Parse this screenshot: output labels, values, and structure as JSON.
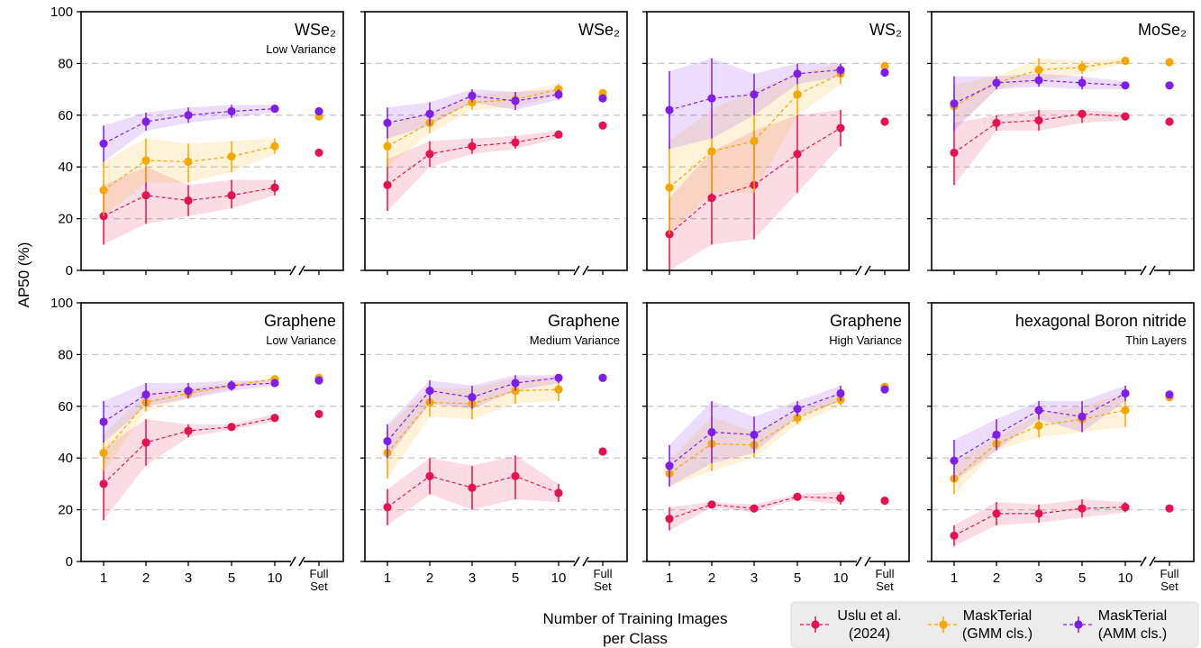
{
  "figure": {
    "ylabel": "AP50 (%)",
    "xlabel_line1": "Number of Training Images",
    "xlabel_line2": "per Class",
    "x_ticks": [
      "1",
      "2",
      "3",
      "5",
      "10"
    ],
    "full_set_line1": "Full",
    "full_set_line2": "Set",
    "y_ticks": [
      0,
      20,
      40,
      60,
      80,
      100
    ],
    "ylim": [
      0,
      100
    ],
    "grid": "horizontal dashed at 20, 40, 60, 80",
    "legend_position": "bottom-right",
    "legend": [
      {
        "line1": "Uslu et al.",
        "line2": "(2024)",
        "color": "#e6124f"
      },
      {
        "line1": "MaskTerial",
        "line2": "(GMM cls.)",
        "color": "#f5a700"
      },
      {
        "line1": "MaskTerial",
        "line2": "(AMM cls.)",
        "color": "#7e1ee8"
      }
    ]
  },
  "chart_data": [
    {
      "type": "line",
      "title": "WSe₂",
      "subtitle": "Low Variance",
      "categories": [
        "1",
        "2",
        "3",
        "5",
        "10",
        "Full Set"
      ],
      "series": [
        {
          "name": "Uslu et al. (2024)",
          "values": [
            21,
            29,
            27,
            29,
            32,
            45.5
          ],
          "lower": [
            10,
            18,
            21,
            24,
            29
          ],
          "upper": [
            33,
            40,
            33,
            35,
            35
          ]
        },
        {
          "name": "MaskTerial (GMM cls.)",
          "values": [
            31,
            42.5,
            42,
            44,
            48,
            59.5
          ],
          "lower": [
            21,
            34,
            34,
            38,
            45
          ],
          "upper": [
            42,
            51,
            49,
            50,
            51
          ]
        },
        {
          "name": "MaskTerial (AMM cls.)",
          "values": [
            49,
            57.5,
            60,
            61.5,
            62.5,
            61.5
          ],
          "lower": [
            42,
            54,
            57,
            59,
            61
          ],
          "upper": [
            56,
            61,
            63,
            64,
            64
          ]
        }
      ]
    },
    {
      "type": "line",
      "title": "WSe₂",
      "subtitle": "",
      "categories": [
        "1",
        "2",
        "3",
        "5",
        "10",
        "Full Set"
      ],
      "series": [
        {
          "name": "Uslu et al. (2024)",
          "values": [
            33,
            45,
            48,
            49.5,
            52.5,
            56
          ],
          "lower": [
            23,
            40,
            45,
            47,
            51
          ],
          "upper": [
            43,
            50,
            51,
            52,
            54
          ]
        },
        {
          "name": "MaskTerial (GMM cls.)",
          "values": [
            48,
            57,
            65,
            66,
            70,
            68.5
          ],
          "lower": [
            40,
            53,
            62,
            63,
            68
          ],
          "upper": [
            56,
            61,
            68,
            69,
            72
          ]
        },
        {
          "name": "MaskTerial (AMM cls.)",
          "values": [
            57,
            60.5,
            67.5,
            65.5,
            68,
            66.5
          ],
          "lower": [
            51,
            56,
            65,
            62,
            66
          ],
          "upper": [
            63,
            65,
            70,
            69,
            70
          ]
        }
      ]
    },
    {
      "type": "line",
      "title": "WS₂",
      "subtitle": "",
      "categories": [
        "1",
        "2",
        "3",
        "5",
        "10",
        "Full Set"
      ],
      "series": [
        {
          "name": "Uslu et al. (2024)",
          "values": [
            14,
            28,
            33,
            45,
            55,
            57.5
          ],
          "lower": [
            0,
            10,
            12,
            30,
            48
          ],
          "upper": [
            28,
            46,
            54,
            60,
            62
          ]
        },
        {
          "name": "MaskTerial (GMM cls.)",
          "values": [
            32,
            46,
            50,
            68,
            76,
            79
          ],
          "lower": [
            14,
            30,
            30,
            60,
            72
          ],
          "upper": [
            50,
            62,
            70,
            76,
            80
          ]
        },
        {
          "name": "MaskTerial (AMM cls.)",
          "values": [
            62,
            66.5,
            68,
            76,
            77.5,
            76.5
          ],
          "lower": [
            47,
            51,
            60,
            72,
            75
          ],
          "upper": [
            77,
            82,
            76,
            80,
            80
          ]
        }
      ]
    },
    {
      "type": "line",
      "title": "MoSe₂",
      "subtitle": "",
      "categories": [
        "1",
        "2",
        "3",
        "5",
        "10",
        "Full Set"
      ],
      "series": [
        {
          "name": "Uslu et al. (2024)",
          "values": [
            45.5,
            57,
            58,
            60.5,
            59.5,
            57.5
          ],
          "lower": [
            33,
            54,
            54,
            57,
            58
          ],
          "upper": [
            57,
            60,
            62,
            62,
            61
          ]
        },
        {
          "name": "MaskTerial (GMM cls.)",
          "values": [
            63.5,
            72.5,
            77.5,
            78.5,
            81,
            80.5
          ],
          "lower": [
            55,
            70,
            73,
            76,
            80
          ],
          "upper": [
            72,
            75,
            82,
            81,
            82
          ]
        },
        {
          "name": "MaskTerial (AMM cls.)",
          "values": [
            64.5,
            72.5,
            73.5,
            72.5,
            71.5,
            71.5
          ],
          "lower": [
            54,
            70,
            71,
            70,
            70
          ],
          "upper": [
            75,
            75,
            76,
            75,
            73
          ]
        }
      ]
    },
    {
      "type": "line",
      "title": "Graphene",
      "subtitle": "Low Variance",
      "categories": [
        "1",
        "2",
        "3",
        "5",
        "10",
        "Full Set"
      ],
      "series": [
        {
          "name": "Uslu et al. (2024)",
          "values": [
            30,
            46,
            50.5,
            52,
            55.5,
            57
          ],
          "lower": [
            16,
            37,
            48,
            51,
            54
          ],
          "upper": [
            44,
            55,
            53,
            53,
            57
          ]
        },
        {
          "name": "MaskTerial (GMM cls.)",
          "values": [
            42,
            61.5,
            65,
            68,
            70.5,
            71
          ],
          "lower": [
            35,
            58,
            63,
            67,
            70
          ],
          "upper": [
            49,
            65,
            67,
            69,
            71
          ]
        },
        {
          "name": "MaskTerial (AMM cls.)",
          "values": [
            54,
            64.5,
            66,
            68,
            69,
            70
          ],
          "lower": [
            46,
            60,
            63,
            66,
            68
          ],
          "upper": [
            62,
            69,
            69,
            70,
            70
          ]
        }
      ]
    },
    {
      "type": "line",
      "title": "Graphene",
      "subtitle": "Medium Variance",
      "categories": [
        "1",
        "2",
        "3",
        "5",
        "10",
        "Full Set"
      ],
      "series": [
        {
          "name": "Uslu et al. (2024)",
          "values": [
            21,
            33,
            28.5,
            33,
            26.5,
            42.5
          ],
          "lower": [
            14,
            26,
            20,
            24,
            23
          ],
          "upper": [
            28,
            40,
            37,
            41,
            30
          ]
        },
        {
          "name": "MaskTerial (GMM cls.)",
          "values": [
            42,
            61.5,
            61,
            66,
            66.5,
            71
          ],
          "lower": [
            32,
            56,
            55,
            61,
            62
          ],
          "upper": [
            52,
            67,
            67,
            71,
            71
          ]
        },
        {
          "name": "MaskTerial (AMM cls.)",
          "values": [
            46.5,
            66,
            63.5,
            69,
            71,
            71
          ],
          "lower": [
            40,
            61,
            59,
            66,
            69
          ],
          "upper": [
            53,
            70,
            68,
            72,
            72
          ]
        }
      ]
    },
    {
      "type": "line",
      "title": "Graphene",
      "subtitle": "High Variance",
      "categories": [
        "1",
        "2",
        "3",
        "5",
        "10",
        "Full Set"
      ],
      "series": [
        {
          "name": "Uslu et al. (2024)",
          "values": [
            16.5,
            22,
            20.5,
            25,
            24.5,
            23.5
          ],
          "lower": [
            12,
            21,
            19,
            24,
            22
          ],
          "upper": [
            21,
            23,
            22,
            26,
            27
          ]
        },
        {
          "name": "MaskTerial (GMM cls.)",
          "values": [
            34,
            45.5,
            45,
            55.5,
            62.5,
            67.5
          ],
          "lower": [
            29,
            35,
            40,
            53,
            60
          ],
          "upper": [
            39,
            56,
            50,
            58,
            65
          ]
        },
        {
          "name": "MaskTerial (AMM cls.)",
          "values": [
            37,
            50,
            49,
            59,
            65,
            66.5
          ],
          "lower": [
            29,
            38,
            42,
            56,
            62
          ],
          "upper": [
            45,
            62,
            56,
            62,
            68
          ]
        }
      ]
    },
    {
      "type": "line",
      "title": "hexagonal Boron nitride",
      "subtitle": "Thin Layers",
      "categories": [
        "1",
        "2",
        "3",
        "5",
        "10",
        "Full Set"
      ],
      "series": [
        {
          "name": "Uslu et al. (2024)",
          "values": [
            10,
            18.5,
            18.5,
            20.5,
            21,
            20.5
          ],
          "lower": [
            6,
            14,
            15,
            17,
            19
          ],
          "upper": [
            14,
            23,
            22,
            24,
            23
          ]
        },
        {
          "name": "MaskTerial (GMM cls.)",
          "values": [
            32,
            45.5,
            52.5,
            55,
            58.5,
            63.5
          ],
          "lower": [
            26,
            43,
            48,
            50,
            52
          ],
          "upper": [
            38,
            48,
            57,
            60,
            65
          ]
        },
        {
          "name": "MaskTerial (AMM cls.)",
          "values": [
            39,
            49,
            58.5,
            56,
            65,
            64.5
          ],
          "lower": [
            31,
            43,
            55,
            50,
            62
          ],
          "upper": [
            47,
            55,
            62,
            62,
            68
          ]
        }
      ]
    }
  ]
}
